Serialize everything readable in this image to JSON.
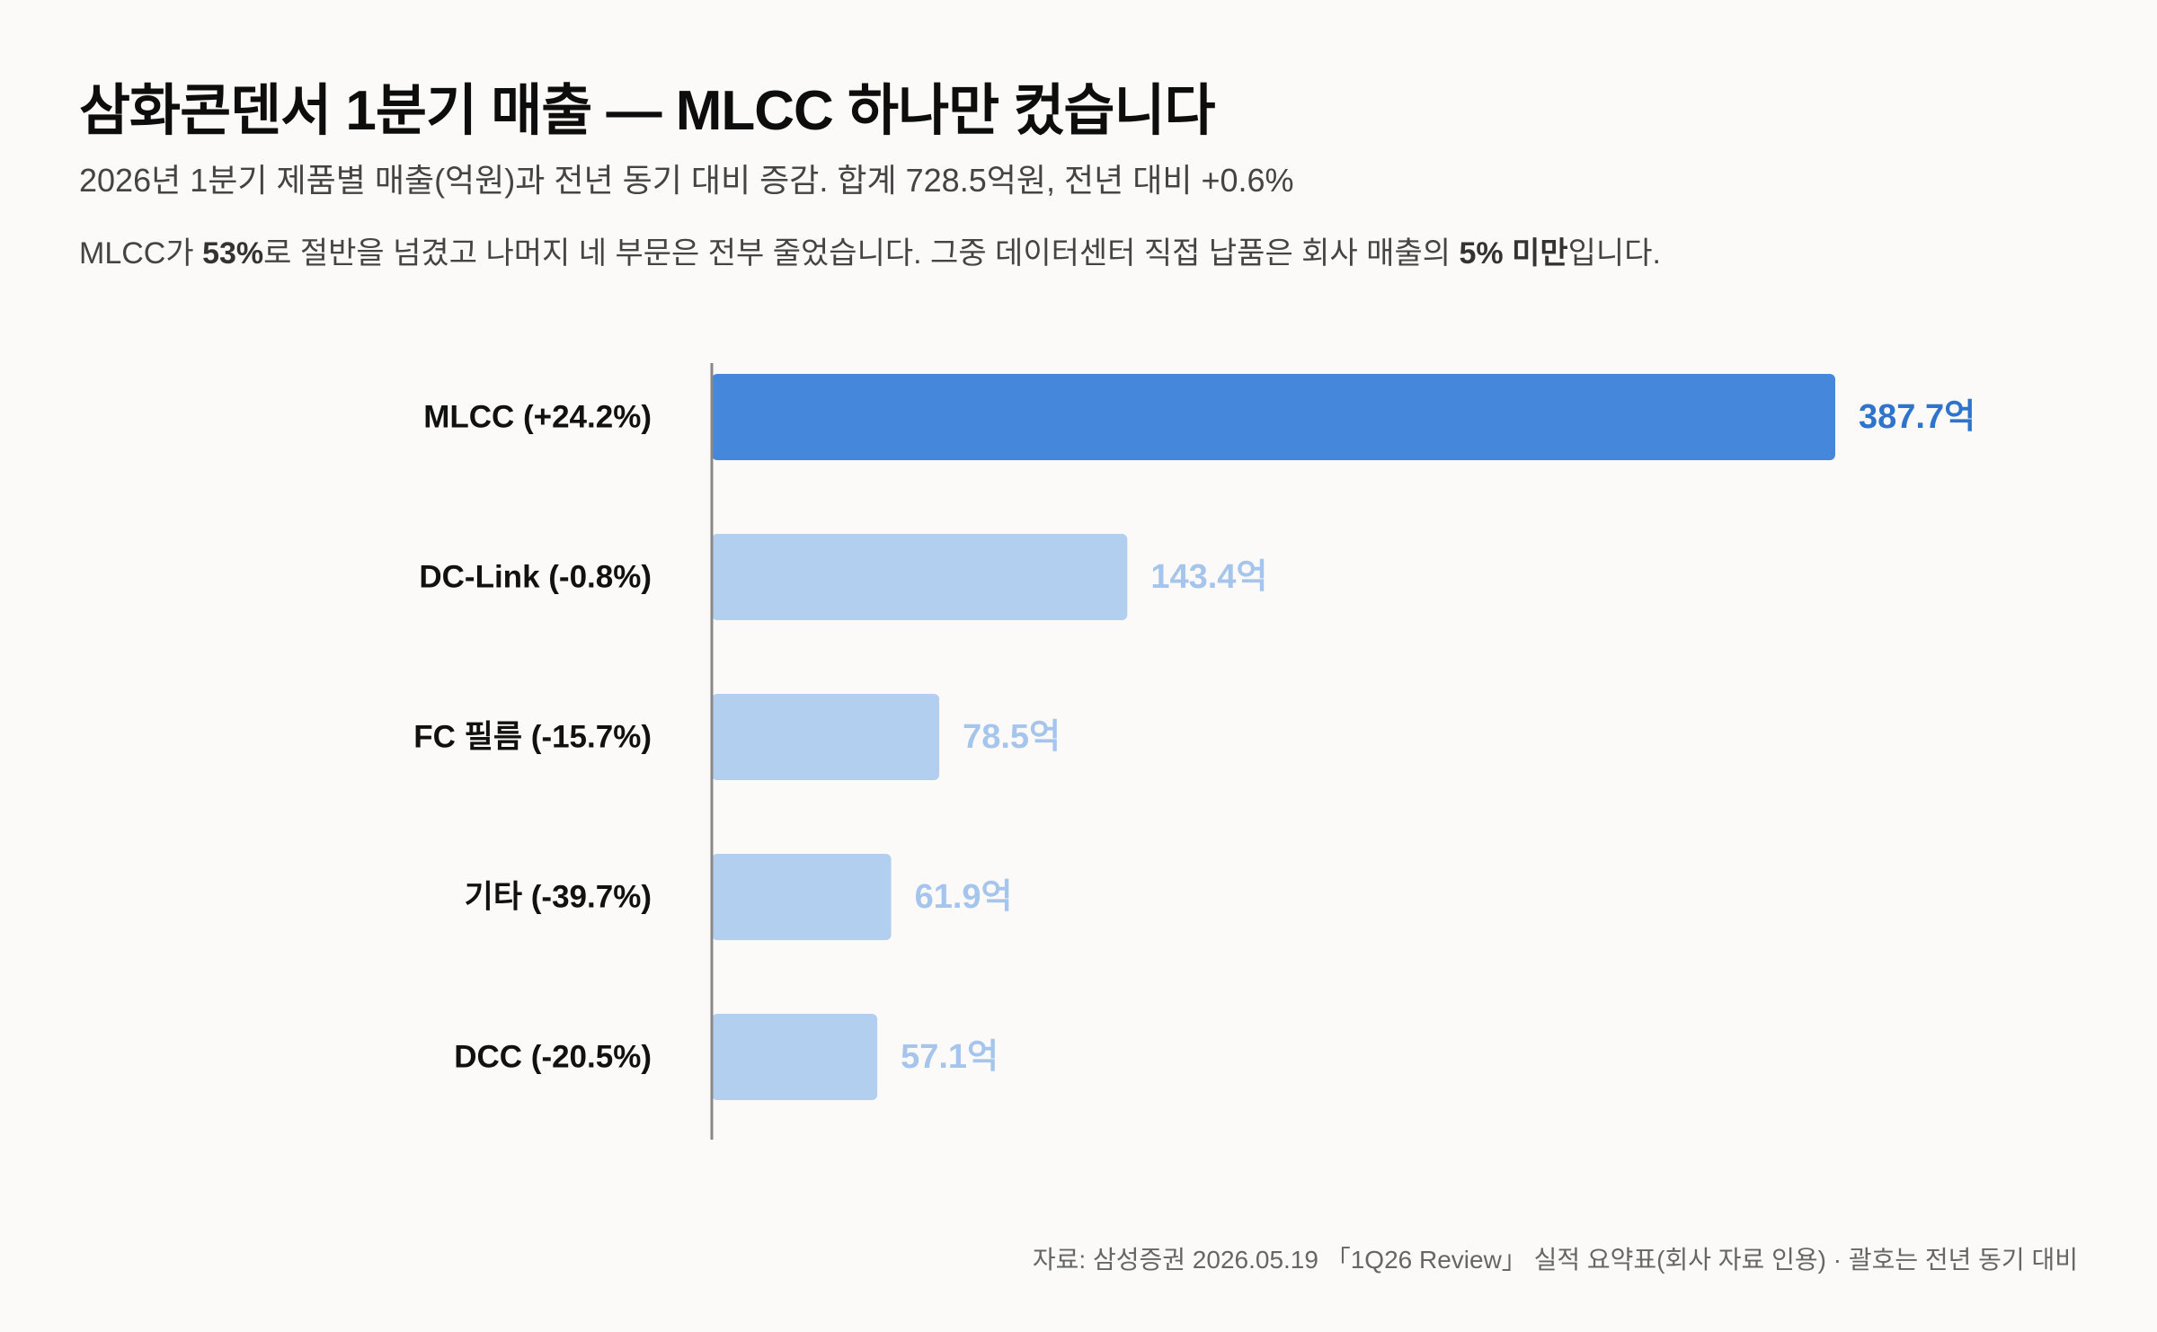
{
  "header": {
    "title": "삼화콘덴서 1분기 매출 — MLCC 하나만 컸습니다",
    "subtitle": "2026년 1분기 제품별 매출(억원)과 전년 동기 대비 증감. 합계 728.5억원, 전년 대비 +0.6%",
    "lede": {
      "p1": "MLCC가 ",
      "b1": "53%",
      "p2": "로 절반을 넘겼고 나머지 네 부문은 전부 줄었습니다. 그중 데이터센터 직접 납품은 회사 매출의 ",
      "b2": "5% 미만",
      "p3": "입니다."
    }
  },
  "colors": {
    "highlight_bar": "#4588db",
    "highlight_text": "#2f74cc",
    "muted_bar": "#b3cfef",
    "muted_text": "#a6c5ec",
    "axis": "#888888"
  },
  "chart_data": {
    "type": "bar",
    "orientation": "horizontal",
    "unit": "억",
    "categories": [
      "MLCC (+24.2%)",
      "DC-Link (-0.8%)",
      "FC 필름 (-15.7%)",
      "기타 (-39.7%)",
      "DCC (-20.5%)"
    ],
    "values": [
      387.7,
      143.4,
      78.5,
      61.9,
      57.1
    ],
    "value_labels": [
      "387.7억",
      "143.4억",
      "78.5억",
      "61.9억",
      "57.1억"
    ],
    "highlight_index": 0,
    "xlim": [
      0,
      387.7
    ]
  },
  "footer": {
    "source": "자료: 삼성증권 2026.05.19 「1Q26 Review」 실적 요약표(회사 자료 인용) · 괄호는 전년 동기 대비"
  }
}
